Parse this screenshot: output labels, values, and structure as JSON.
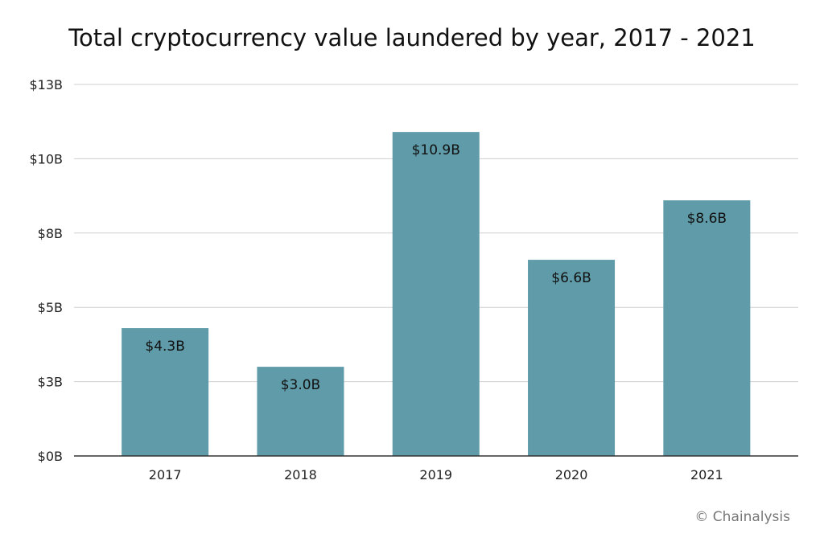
{
  "chart_data": {
    "type": "bar",
    "title": "Total cryptocurrency value laundered by year, 2017 - 2021",
    "categories": [
      "2017",
      "2018",
      "2019",
      "2020",
      "2021"
    ],
    "values": [
      4.3,
      3.0,
      10.9,
      6.6,
      8.6
    ],
    "data_labels": [
      "$4.3B",
      "$3.0B",
      "$10.9B",
      "$6.6B",
      "$8.6B"
    ],
    "unit": "billion USD",
    "xlabel": "",
    "ylabel": "",
    "ylim": [
      0,
      12.5
    ],
    "y_ticks": [
      0,
      2.5,
      5,
      7.5,
      10,
      12.5
    ],
    "y_tick_labels": [
      "$0B",
      "$3B",
      "$5B",
      "$8B",
      "$10B",
      "$13B"
    ],
    "grid": true,
    "legend": "none",
    "bar_color": "#5f9ba8"
  },
  "credit": "© Chainalysis"
}
